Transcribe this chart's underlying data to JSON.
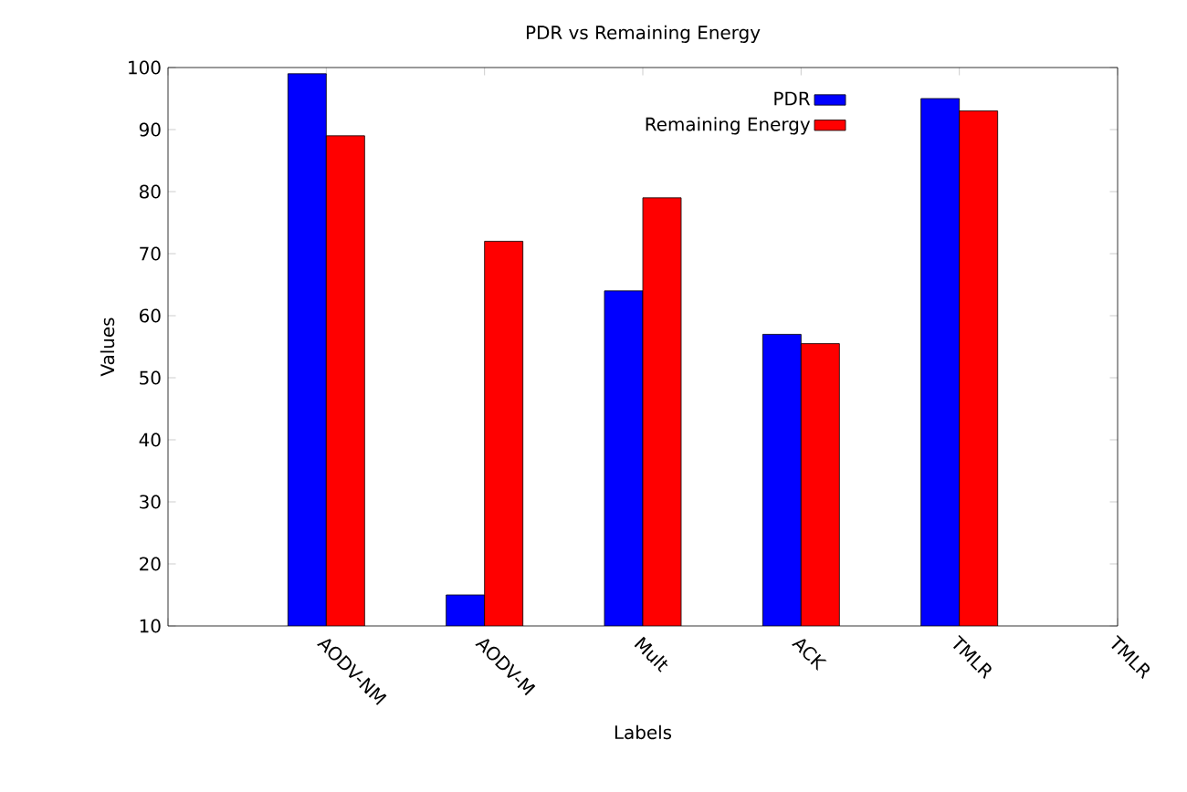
{
  "chart_data": {
    "type": "bar",
    "title": "PDR vs Remaining Energy",
    "xlabel": "Labels",
    "ylabel": "Values",
    "categories": [
      null,
      "AODV-NM",
      "AODV-M",
      "Mult",
      "ACK",
      "TMLR",
      "TMLR"
    ],
    "series": [
      {
        "name": "PDR",
        "color": "#0000ff",
        "values": [
          null,
          99,
          15,
          64,
          57,
          95,
          null
        ]
      },
      {
        "name": "Remaining Energy",
        "color": "#ff0000",
        "values": [
          null,
          89,
          72,
          79,
          55.5,
          93,
          null
        ]
      }
    ],
    "ylim": [
      10,
      100
    ],
    "yticks": [
      10,
      20,
      30,
      40,
      50,
      60,
      70,
      80,
      90,
      100
    ],
    "legend": "top right"
  }
}
